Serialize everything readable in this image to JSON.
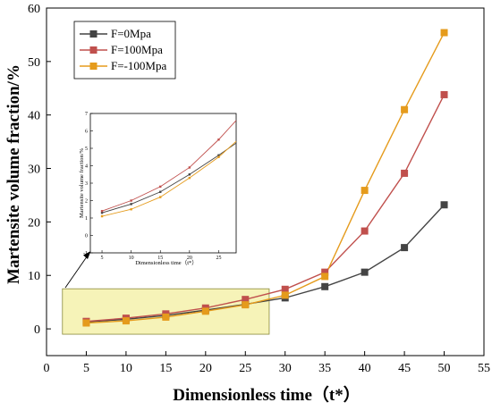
{
  "chart_data": [
    {
      "type": "line",
      "title": "",
      "xlabel": "Dimensionless time（t*）",
      "ylabel": "Martensite volume fraction/%",
      "xlim": [
        0,
        55
      ],
      "ylim": [
        -5,
        60
      ],
      "xticks": [
        0,
        5,
        10,
        15,
        20,
        25,
        30,
        35,
        40,
        45,
        50,
        55
      ],
      "yticks": [
        0,
        10,
        20,
        30,
        40,
        50,
        60
      ],
      "grid": false,
      "legend_position": "top-left",
      "series": [
        {
          "name": "F=0Mpa",
          "color": "#444444",
          "marker": "square",
          "x": [
            5,
            10,
            15,
            20,
            25,
            30,
            35,
            40,
            45,
            50
          ],
          "values": [
            1.3,
            1.8,
            2.5,
            3.5,
            4.6,
            5.8,
            7.9,
            10.6,
            15.2,
            23.2
          ]
        },
        {
          "name": "F=100Mpa",
          "color": "#c0504d",
          "marker": "square",
          "x": [
            5,
            10,
            15,
            20,
            25,
            30,
            35,
            40,
            45,
            50
          ],
          "values": [
            1.4,
            2.0,
            2.8,
            3.9,
            5.5,
            7.4,
            10.6,
            18.3,
            29.1,
            43.8
          ]
        },
        {
          "name": "F=-100Mpa",
          "color": "#e59b1c",
          "marker": "square",
          "x": [
            5,
            10,
            15,
            20,
            25,
            30,
            35,
            40,
            45,
            50
          ],
          "values": [
            1.1,
            1.5,
            2.2,
            3.3,
            4.5,
            6.3,
            9.8,
            25.9,
            41.0,
            55.4
          ]
        }
      ]
    },
    {
      "type": "line",
      "title": "",
      "xlabel": "Dimensionless time（t*）",
      "ylabel": "Martensite volume fraction/%",
      "xlim": [
        3,
        28
      ],
      "ylim": [
        -1,
        7
      ],
      "xticks": [
        5,
        10,
        15,
        20,
        25
      ],
      "yticks": [
        -1,
        0,
        1,
        2,
        3,
        4,
        5,
        6,
        7
      ],
      "grid": false,
      "series": [
        {
          "name": "F=0Mpa",
          "color": "#444444",
          "x": [
            5,
            10,
            15,
            20,
            25,
            28
          ],
          "values": [
            1.3,
            1.8,
            2.5,
            3.5,
            4.6,
            5.3
          ]
        },
        {
          "name": "F=100Mpa",
          "color": "#c0504d",
          "x": [
            5,
            10,
            15,
            20,
            25,
            28
          ],
          "values": [
            1.4,
            2.0,
            2.8,
            3.9,
            5.5,
            6.6
          ]
        },
        {
          "name": "F=-100Mpa",
          "color": "#e59b1c",
          "x": [
            5,
            10,
            15,
            20,
            25,
            28
          ],
          "values": [
            1.1,
            1.5,
            2.2,
            3.3,
            4.5,
            5.4
          ]
        }
      ]
    }
  ],
  "highlight": {
    "fill": "#f6f3b8",
    "stroke": "#8a8a3a",
    "x_range": [
      2,
      28
    ],
    "y_range": [
      -1,
      7.5
    ]
  }
}
